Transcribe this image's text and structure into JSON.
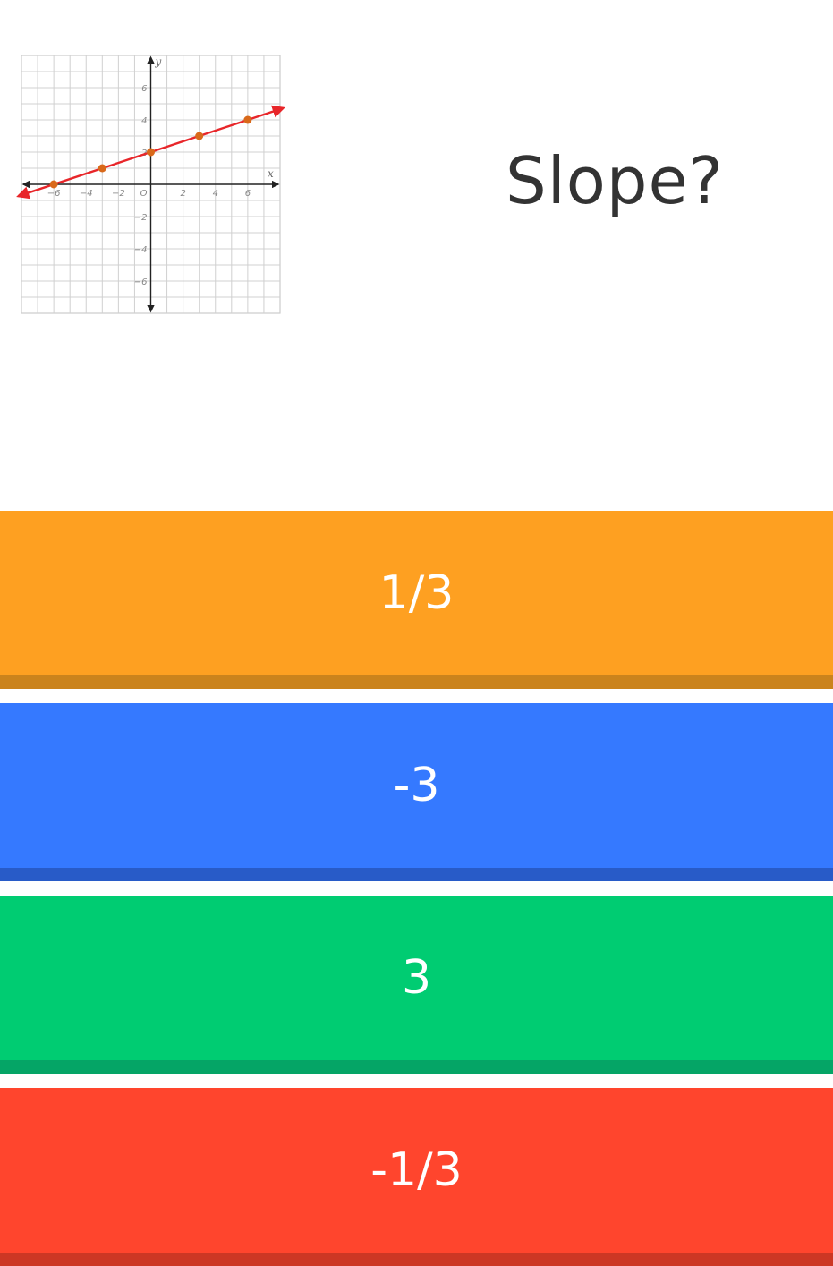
{
  "question": {
    "text": "Slope?"
  },
  "chart_data": {
    "type": "line",
    "title": "",
    "xlabel": "x",
    "ylabel": "y",
    "xlim": [
      -8,
      8
    ],
    "ylim": [
      -8,
      8
    ],
    "grid": true,
    "origin_label": "O",
    "x_ticks": [
      -6,
      -4,
      -2,
      2,
      4,
      6
    ],
    "y_ticks": [
      6,
      4,
      2,
      -2,
      -4,
      -6
    ],
    "points": [
      {
        "x": -6,
        "y": 0
      },
      {
        "x": -3,
        "y": 1
      },
      {
        "x": 0,
        "y": 2
      },
      {
        "x": 3,
        "y": 3
      },
      {
        "x": 6,
        "y": 4
      }
    ],
    "line_color": "#e8262a",
    "point_color": "#d9691a"
  },
  "answers": [
    {
      "label": "1/3",
      "color": "#fea021",
      "shade": "#cb831c"
    },
    {
      "label": "-3",
      "color": "#3579ff",
      "shade": "#285bc8"
    },
    {
      "label": "3",
      "color": "#00cc72",
      "shade": "#05a566"
    },
    {
      "label": "-1/3",
      "color": "#ff452d",
      "shade": "#cc3724"
    }
  ]
}
